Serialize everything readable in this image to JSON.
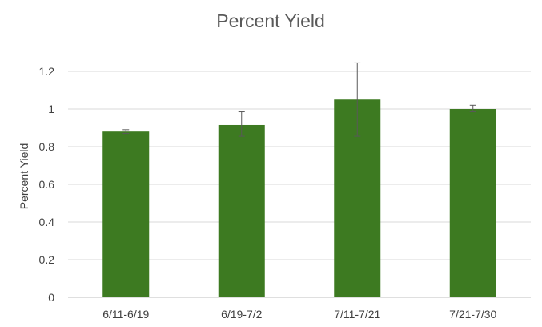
{
  "chart_data": {
    "type": "bar",
    "title": "Percent Yield",
    "xlabel": "",
    "ylabel": "Percent Yield",
    "categories": [
      "6/11-6/19",
      "6/19-7/2",
      "7/11-7/21",
      "7/21-7/30"
    ],
    "values": [
      0.88,
      0.915,
      1.05,
      1.0
    ],
    "error_low": [
      0.87,
      0.855,
      0.855,
      0.985
    ],
    "error_high": [
      0.89,
      0.985,
      1.245,
      1.02
    ],
    "ylim": [
      0,
      1.2
    ],
    "yticks": [
      "0",
      "0.2",
      "0.4",
      "0.6",
      "0.8",
      "1",
      "1.2"
    ],
    "ytick_values": [
      0,
      0.2,
      0.4,
      0.6,
      0.8,
      1.0,
      1.2
    ],
    "grid": true,
    "legend": "none",
    "bar_color": "#3d7a21",
    "grid_color": "#d9d9d9",
    "axis_color": "#bfbfbf",
    "error_color": "#595959"
  }
}
